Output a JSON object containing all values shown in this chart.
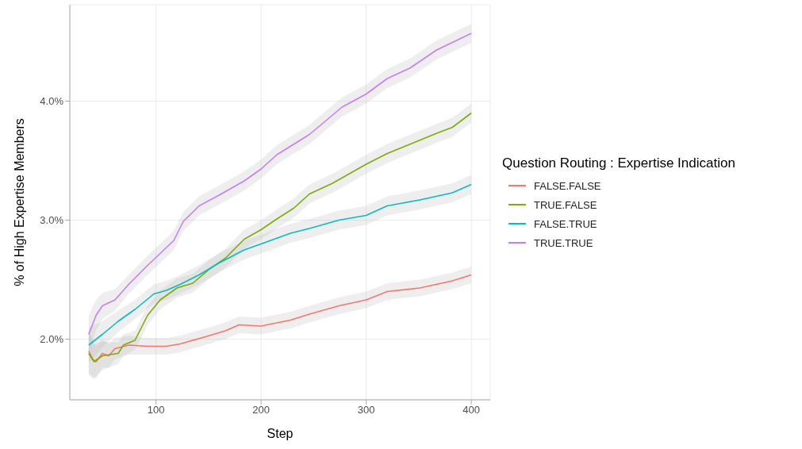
{
  "chart_data": {
    "type": "line",
    "xlabel": "Step",
    "ylabel": "% of High Expertise Members",
    "legend_title": "Question Routing : Expertise Indication",
    "legend": "right",
    "grid": true,
    "marker": "none",
    "line_style": "solid",
    "xlim": [
      18,
      418
    ],
    "xticks": [
      100,
      200,
      300,
      400
    ],
    "ylim": [
      1.49,
      4.81
    ],
    "yticks": [
      {
        "value": 2,
        "label": "2.0%"
      },
      {
        "value": 3,
        "label": "3.0%"
      },
      {
        "value": 4,
        "label": "4.0%"
      }
    ],
    "series": [
      {
        "name": "FALSE.FALSE",
        "color": "#f8766d",
        "x": [
          36,
          40,
          43,
          49,
          55,
          61,
          74,
          92,
          110,
          123,
          147,
          166,
          179,
          200,
          228,
          246,
          274,
          300,
          320,
          351,
          382,
          400
        ],
        "values": [
          1.9,
          1.83,
          1.81,
          1.88,
          1.86,
          1.92,
          1.95,
          1.94,
          1.94,
          1.96,
          2.02,
          2.07,
          2.12,
          2.11,
          2.16,
          2.21,
          2.28,
          2.33,
          2.4,
          2.43,
          2.49,
          2.54
        ],
        "lower": [
          1.72,
          1.68,
          1.68,
          1.76,
          1.76,
          1.83,
          1.87,
          1.87,
          1.87,
          1.89,
          1.95,
          2.0,
          2.05,
          2.04,
          2.09,
          2.14,
          2.21,
          2.26,
          2.33,
          2.36,
          2.42,
          2.47
        ],
        "upper": [
          2.08,
          1.98,
          1.94,
          2.0,
          1.96,
          2.01,
          2.03,
          2.01,
          2.01,
          2.03,
          2.09,
          2.14,
          2.19,
          2.18,
          2.23,
          2.28,
          2.35,
          2.4,
          2.47,
          2.5,
          2.56,
          2.61
        ]
      },
      {
        "name": "TRUE.FALSE",
        "color": "#7cae00",
        "x": [
          36,
          41,
          49,
          64,
          69,
          80,
          92,
          104,
          120,
          135,
          151,
          166,
          184,
          200,
          215,
          231,
          246,
          268,
          300,
          320,
          345,
          367,
          382,
          400
        ],
        "values": [
          1.88,
          1.81,
          1.86,
          1.88,
          1.95,
          1.99,
          2.2,
          2.33,
          2.43,
          2.47,
          2.59,
          2.68,
          2.84,
          2.92,
          3.01,
          3.1,
          3.22,
          3.31,
          3.47,
          3.56,
          3.65,
          3.73,
          3.78,
          3.9
        ],
        "lower": [
          1.7,
          1.66,
          1.74,
          1.79,
          1.86,
          1.91,
          2.12,
          2.25,
          2.35,
          2.39,
          2.51,
          2.6,
          2.76,
          2.84,
          2.93,
          3.02,
          3.14,
          3.23,
          3.39,
          3.48,
          3.57,
          3.65,
          3.7,
          3.82
        ],
        "upper": [
          2.06,
          1.96,
          1.98,
          1.97,
          2.04,
          2.07,
          2.28,
          2.41,
          2.51,
          2.55,
          2.67,
          2.76,
          2.92,
          3.0,
          3.09,
          3.18,
          3.3,
          3.39,
          3.55,
          3.64,
          3.73,
          3.81,
          3.86,
          3.98
        ]
      },
      {
        "name": "FALSE.TRUE",
        "color": "#00bfc4",
        "x": [
          36,
          49,
          64,
          80,
          98,
          110,
          123,
          141,
          160,
          184,
          200,
          228,
          246,
          274,
          300,
          320,
          351,
          382,
          400
        ],
        "values": [
          1.95,
          2.04,
          2.15,
          2.25,
          2.38,
          2.41,
          2.46,
          2.54,
          2.64,
          2.75,
          2.8,
          2.89,
          2.93,
          3.0,
          3.04,
          3.12,
          3.17,
          3.23,
          3.3
        ],
        "lower": [
          1.8,
          1.93,
          2.06,
          2.17,
          2.3,
          2.33,
          2.38,
          2.46,
          2.56,
          2.67,
          2.72,
          2.81,
          2.85,
          2.92,
          2.96,
          3.04,
          3.09,
          3.15,
          3.22
        ],
        "upper": [
          2.1,
          2.15,
          2.24,
          2.33,
          2.46,
          2.49,
          2.54,
          2.62,
          2.72,
          2.83,
          2.88,
          2.97,
          3.01,
          3.08,
          3.12,
          3.2,
          3.25,
          3.31,
          3.38
        ]
      },
      {
        "name": "TRUE.TRUE",
        "color": "#c77cff",
        "x": [
          36,
          43,
          49,
          61,
          74,
          92,
          104,
          117,
          126,
          141,
          160,
          184,
          200,
          215,
          246,
          277,
          300,
          320,
          342,
          367,
          400
        ],
        "values": [
          2.04,
          2.2,
          2.28,
          2.33,
          2.46,
          2.62,
          2.72,
          2.83,
          2.99,
          3.12,
          3.21,
          3.33,
          3.43,
          3.55,
          3.72,
          3.95,
          4.06,
          4.19,
          4.28,
          4.43,
          4.57
        ],
        "lower": [
          1.88,
          2.07,
          2.17,
          2.24,
          2.38,
          2.54,
          2.64,
          2.75,
          2.91,
          3.04,
          3.13,
          3.25,
          3.35,
          3.47,
          3.64,
          3.87,
          3.98,
          4.11,
          4.2,
          4.35,
          4.49
        ],
        "upper": [
          2.2,
          2.33,
          2.39,
          2.42,
          2.54,
          2.7,
          2.8,
          2.91,
          3.07,
          3.2,
          3.29,
          3.41,
          3.51,
          3.63,
          3.8,
          4.03,
          4.14,
          4.27,
          4.36,
          4.51,
          4.65
        ]
      }
    ]
  }
}
